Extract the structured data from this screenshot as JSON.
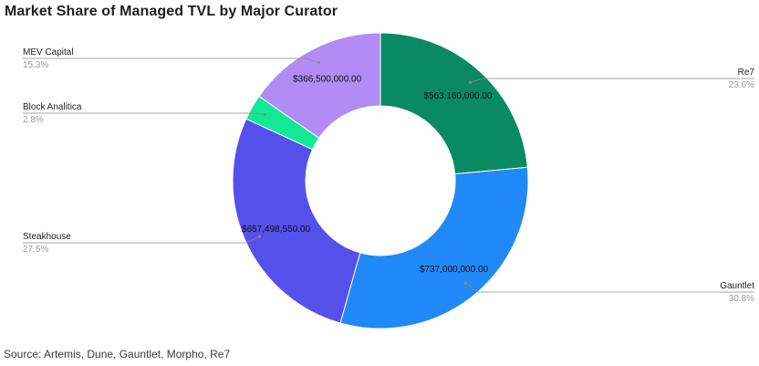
{
  "title": "Market Share of Managed TVL by Major Curator",
  "source": "Source: Artemis, Dune, Gauntlet, Morpho, Re7",
  "chart_data": {
    "type": "pie",
    "donut": true,
    "title": "Market Share of Managed TVL by Major Curator",
    "slices": [
      {
        "name": "Re7",
        "value": 563160000,
        "label": "$563,160,000.00",
        "percent": "23.6%",
        "color": "#0a8a62"
      },
      {
        "name": "Gauntlet",
        "value": 737000000,
        "label": "$737,000,000.00",
        "percent": "30.8%",
        "color": "#2189f7"
      },
      {
        "name": "Steakhouse",
        "value": 657498550,
        "label": "$657,498,550.00",
        "percent": "27.5%",
        "color": "#5550ec"
      },
      {
        "name": "Block Analitica",
        "value": 67000000,
        "label": "",
        "percent": "2.8%",
        "color": "#13e895"
      },
      {
        "name": "MEV Capital",
        "value": 366500000,
        "label": "$366,500,000.00",
        "percent": "15.3%",
        "color": "#b08cf4"
      }
    ]
  }
}
